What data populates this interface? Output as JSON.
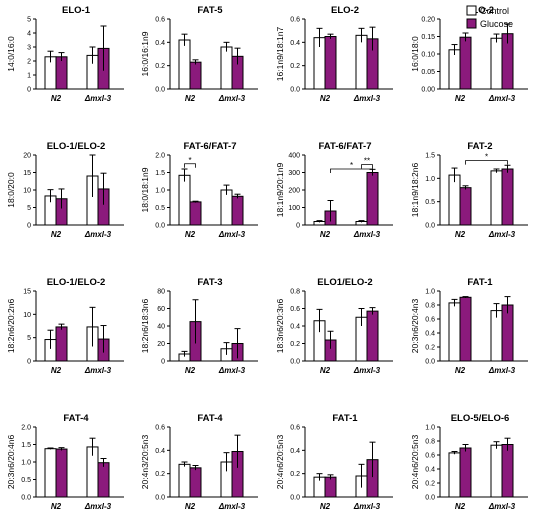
{
  "colors": {
    "control": "#ffffff",
    "glucose": "#8b1a7c",
    "axis": "#000000"
  },
  "legend": {
    "items": [
      {
        "label": "Control",
        "color": "#ffffff"
      },
      {
        "label": "Glucose",
        "color": "#8b1a7c"
      }
    ],
    "placement": "top-right"
  },
  "chart_data": [
    {
      "type": "bar",
      "title": "ELO-1",
      "ylabel": "14:0/16:0",
      "categories": [
        "N2",
        "Δmxl-3"
      ],
      "yticks": [
        0,
        1,
        2,
        3,
        4,
        5
      ],
      "ylim": [
        0,
        5
      ],
      "series": [
        {
          "name": "Control",
          "values": [
            2.3,
            2.4
          ],
          "errors": [
            0.4,
            0.6
          ]
        },
        {
          "name": "Glucose",
          "values": [
            2.3,
            2.9
          ],
          "errors": [
            0.3,
            1.6
          ]
        }
      ],
      "significance": []
    },
    {
      "type": "bar",
      "title": "FAT-5",
      "ylabel": "16:0/16:1n9",
      "categories": [
        "N2",
        "Δmxl-3"
      ],
      "yticks": [
        0.0,
        0.2,
        0.4,
        0.6
      ],
      "ylim": [
        0,
        0.6
      ],
      "series": [
        {
          "name": "Control",
          "values": [
            0.42,
            0.36
          ],
          "errors": [
            0.05,
            0.04
          ]
        },
        {
          "name": "Glucose",
          "values": [
            0.23,
            0.28
          ],
          "errors": [
            0.02,
            0.07
          ]
        }
      ],
      "significance": []
    },
    {
      "type": "bar",
      "title": "ELO-2",
      "ylabel": "16:1n9/18:1n7",
      "categories": [
        "N2",
        "Δmxl-3"
      ],
      "yticks": [
        0.0,
        0.2,
        0.4,
        0.6
      ],
      "ylim": [
        0,
        0.6
      ],
      "series": [
        {
          "name": "Control",
          "values": [
            0.44,
            0.46
          ],
          "errors": [
            0.08,
            0.06
          ]
        },
        {
          "name": "Glucose",
          "values": [
            0.45,
            0.43
          ],
          "errors": [
            0.02,
            0.1
          ]
        }
      ],
      "significance": []
    },
    {
      "type": "bar",
      "title": "ELO-2",
      "ylabel": "16:0/18:0",
      "categories": [
        "N2",
        "Δmxl-3"
      ],
      "yticks": [
        0.0,
        0.05,
        0.1,
        0.15,
        0.2
      ],
      "ylim": [
        0,
        0.2
      ],
      "series": [
        {
          "name": "Control",
          "values": [
            0.112,
            0.145
          ],
          "errors": [
            0.015,
            0.012
          ]
        },
        {
          "name": "Glucose",
          "values": [
            0.148,
            0.158
          ],
          "errors": [
            0.012,
            0.028
          ]
        }
      ],
      "significance": []
    },
    {
      "type": "bar",
      "title": "ELO-1/ELO-2",
      "ylabel": "18:0/20:0",
      "categories": [
        "N2",
        "Δmxl-3"
      ],
      "yticks": [
        0,
        5,
        10,
        15,
        20
      ],
      "ylim": [
        0,
        20
      ],
      "series": [
        {
          "name": "Control",
          "values": [
            8.3,
            14.0
          ],
          "errors": [
            1.8,
            6.0
          ]
        },
        {
          "name": "Glucose",
          "values": [
            7.5,
            10.3
          ],
          "errors": [
            2.8,
            4.5
          ]
        }
      ],
      "significance": []
    },
    {
      "type": "bar",
      "title": "FAT-6/FAT-7",
      "ylabel": "18:0/18:1n9",
      "categories": [
        "N2",
        "Δmxl-3"
      ],
      "yticks": [
        0.0,
        0.5,
        1.0,
        1.5,
        2.0
      ],
      "ylim": [
        0,
        2
      ],
      "series": [
        {
          "name": "Control",
          "values": [
            1.42,
            1.0
          ],
          "errors": [
            0.18,
            0.14
          ]
        },
        {
          "name": "Glucose",
          "values": [
            0.66,
            0.82
          ],
          "errors": [
            0.02,
            0.06
          ]
        }
      ],
      "significance": [
        {
          "label": "*",
          "from": [
            0,
            0
          ],
          "to": [
            0,
            1
          ],
          "y": 1.75
        }
      ]
    },
    {
      "type": "bar",
      "title": "FAT-6/FAT-7",
      "ylabel": "18:1n9/20:1n9",
      "categories": [
        "N2",
        "Δmxl-3"
      ],
      "yticks": [
        0,
        100,
        200,
        300,
        400
      ],
      "ylim": [
        0,
        400
      ],
      "series": [
        {
          "name": "Control",
          "values": [
            20,
            20
          ],
          "errors": [
            5,
            5
          ]
        },
        {
          "name": "Glucose",
          "values": [
            80,
            300
          ],
          "errors": [
            60,
            18
          ]
        }
      ],
      "significance": [
        {
          "label": "**",
          "from": [
            1,
            0
          ],
          "to": [
            1,
            1
          ],
          "y": 345
        },
        {
          "label": "*",
          "from": [
            0,
            1
          ],
          "to": [
            1,
            1
          ],
          "y": 320
        }
      ]
    },
    {
      "type": "bar",
      "title": "FAT-2",
      "ylabel": "18:1n9/18:2n6",
      "categories": [
        "N2",
        "Δmxl-3"
      ],
      "yticks": [
        0.0,
        0.5,
        1.0,
        1.5
      ],
      "ylim": [
        0,
        1.5
      ],
      "series": [
        {
          "name": "Control",
          "values": [
            1.07,
            1.16
          ],
          "errors": [
            0.15,
            0.04
          ]
        },
        {
          "name": "Glucose",
          "values": [
            0.8,
            1.2
          ],
          "errors": [
            0.04,
            0.08
          ]
        }
      ],
      "significance": [
        {
          "label": "*",
          "from": [
            0,
            1
          ],
          "to": [
            1,
            1
          ],
          "y": 1.38
        }
      ]
    },
    {
      "type": "bar",
      "title": "ELO-1/ELO-2",
      "ylabel": "18:2n6/20:2n6",
      "categories": [
        "N2",
        "Δmxl-3"
      ],
      "yticks": [
        0,
        5,
        10,
        15
      ],
      "ylim": [
        0,
        15
      ],
      "series": [
        {
          "name": "Control",
          "values": [
            4.6,
            7.3
          ],
          "errors": [
            2.0,
            4.2
          ]
        },
        {
          "name": "Glucose",
          "values": [
            7.3,
            4.7
          ],
          "errors": [
            0.6,
            2.9
          ]
        }
      ],
      "significance": []
    },
    {
      "type": "bar",
      "title": "FAT-3",
      "ylabel": "18:2n6/18:3n6",
      "categories": [
        "N2",
        "Δmxl-3"
      ],
      "yticks": [
        0,
        20,
        40,
        60,
        80
      ],
      "ylim": [
        0,
        80
      ],
      "series": [
        {
          "name": "Control",
          "values": [
            8,
            14
          ],
          "errors": [
            3,
            7
          ]
        },
        {
          "name": "Glucose",
          "values": [
            45,
            20
          ],
          "errors": [
            25,
            17
          ]
        }
      ],
      "significance": []
    },
    {
      "type": "bar",
      "title": "ELO1/ELO-2",
      "ylabel": "18:3n6/20:3n6",
      "categories": [
        "N2",
        "Δmxl-3"
      ],
      "yticks": [
        0.0,
        0.2,
        0.4,
        0.6,
        0.8
      ],
      "ylim": [
        0,
        0.8
      ],
      "series": [
        {
          "name": "Control",
          "values": [
            0.46,
            0.5
          ],
          "errors": [
            0.13,
            0.1
          ]
        },
        {
          "name": "Glucose",
          "values": [
            0.24,
            0.57
          ],
          "errors": [
            0.1,
            0.04
          ]
        }
      ],
      "significance": []
    },
    {
      "type": "bar",
      "title": "FAT-1",
      "ylabel": "20:3n6/20:4n3",
      "categories": [
        "N2",
        "Δmxl-3"
      ],
      "yticks": [
        0.0,
        0.2,
        0.4,
        0.6,
        0.8,
        1.0
      ],
      "ylim": [
        0,
        1.0
      ],
      "series": [
        {
          "name": "Control",
          "values": [
            0.83,
            0.72
          ],
          "errors": [
            0.05,
            0.1
          ]
        },
        {
          "name": "Glucose",
          "values": [
            0.91,
            0.8
          ],
          "errors": [
            0.01,
            0.12
          ]
        }
      ],
      "significance": []
    },
    {
      "type": "bar",
      "title": "FAT-4",
      "ylabel": "20:3n6/20:4n6",
      "categories": [
        "N2",
        "Δmxl-3"
      ],
      "yticks": [
        0.0,
        0.5,
        1.0,
        1.5,
        2.0
      ],
      "ylim": [
        0,
        2
      ],
      "series": [
        {
          "name": "Control",
          "values": [
            1.38,
            1.43
          ],
          "errors": [
            0.02,
            0.25
          ]
        },
        {
          "name": "Glucose",
          "values": [
            1.37,
            0.98
          ],
          "errors": [
            0.04,
            0.12
          ]
        }
      ],
      "significance": []
    },
    {
      "type": "bar",
      "title": "FAT-4",
      "ylabel": "20:4n3/20:5n3",
      "categories": [
        "N2",
        "Δmxl-3"
      ],
      "yticks": [
        0.0,
        0.2,
        0.4,
        0.6
      ],
      "ylim": [
        0,
        0.6
      ],
      "series": [
        {
          "name": "Control",
          "values": [
            0.28,
            0.3
          ],
          "errors": [
            0.02,
            0.08
          ]
        },
        {
          "name": "Glucose",
          "values": [
            0.25,
            0.39
          ],
          "errors": [
            0.02,
            0.14
          ]
        }
      ],
      "significance": []
    },
    {
      "type": "bar",
      "title": "FAT-1",
      "ylabel": "20:4n6/20:5n3",
      "categories": [
        "N2",
        "Δmxl-3"
      ],
      "yticks": [
        0.0,
        0.2,
        0.4,
        0.6
      ],
      "ylim": [
        0,
        0.6
      ],
      "series": [
        {
          "name": "Control",
          "values": [
            0.17,
            0.18
          ],
          "errors": [
            0.03,
            0.1
          ]
        },
        {
          "name": "Glucose",
          "values": [
            0.17,
            0.32
          ],
          "errors": [
            0.02,
            0.15
          ]
        }
      ],
      "significance": []
    },
    {
      "type": "bar",
      "title": "ELO-5/ELO-6",
      "ylabel": "20:4n6/20:5n3",
      "categories": [
        "N2",
        "Δmxl-3"
      ],
      "yticks": [
        0.0,
        0.2,
        0.4,
        0.6,
        0.8,
        1.0
      ],
      "ylim": [
        0,
        1.0
      ],
      "series": [
        {
          "name": "Control",
          "values": [
            0.63,
            0.74
          ],
          "errors": [
            0.02,
            0.05
          ]
        },
        {
          "name": "Glucose",
          "values": [
            0.7,
            0.75
          ],
          "errors": [
            0.05,
            0.09
          ]
        }
      ],
      "significance": []
    }
  ]
}
